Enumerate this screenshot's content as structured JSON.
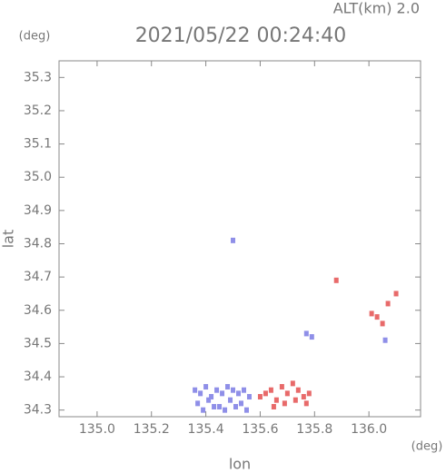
{
  "chart_data": {
    "type": "scatter",
    "title": "2021/05/22 00:24:40",
    "annotation": "ALT(km)  2.0",
    "y_unit": "(deg)",
    "x_unit": "(deg)",
    "xlabel": "lon",
    "ylabel": "lat",
    "xlim": [
      134.86,
      136.19
    ],
    "ylim": [
      34.28,
      35.35
    ],
    "xticks": [
      {
        "value": 135,
        "label": "135.0"
      },
      135.2,
      135.4,
      135.6,
      135.8,
      {
        "value": 136,
        "label": "136.0"
      }
    ],
    "yticks": [
      34.3,
      34.4,
      34.5,
      34.6,
      34.7,
      34.8,
      34.9,
      {
        "value": 35,
        "label": "35.0"
      },
      35.1,
      35.2,
      35.3
    ],
    "series": [
      {
        "color": "#8f8fe8",
        "x": [
          135.36,
          135.38,
          135.4,
          135.42,
          135.44,
          135.46,
          135.48,
          135.5,
          135.52,
          135.54,
          135.37,
          135.41,
          135.45,
          135.49,
          135.53,
          135.56,
          135.39,
          135.43,
          135.47,
          135.51,
          135.55,
          135.77,
          135.79,
          135.5,
          136.06
        ],
        "y": [
          34.36,
          34.35,
          34.37,
          34.34,
          34.36,
          34.35,
          34.37,
          34.36,
          34.35,
          34.36,
          34.32,
          34.33,
          34.31,
          34.33,
          34.32,
          34.34,
          34.3,
          34.31,
          34.3,
          34.31,
          34.3,
          34.53,
          34.52,
          34.81,
          34.51
        ]
      },
      {
        "color": "#e86a6a",
        "x": [
          135.6,
          135.62,
          135.64,
          135.66,
          135.68,
          135.7,
          135.72,
          135.74,
          135.76,
          135.78,
          135.65,
          135.69,
          135.73,
          135.77,
          135.88,
          136.01,
          136.03,
          136.05,
          136.07,
          136.1
        ],
        "y": [
          34.34,
          34.35,
          34.36,
          34.33,
          34.37,
          34.35,
          34.38,
          34.36,
          34.34,
          34.35,
          34.31,
          34.32,
          34.33,
          34.32,
          34.69,
          34.59,
          34.58,
          34.56,
          34.62,
          34.65
        ]
      }
    ]
  }
}
